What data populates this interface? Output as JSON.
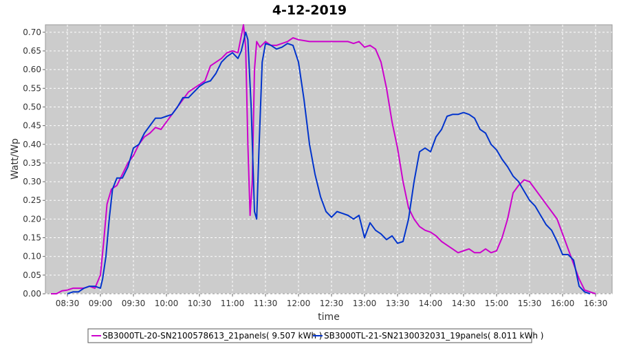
{
  "chart_data": {
    "type": "line",
    "title": "4-12-2019",
    "xlabel": "time",
    "ylabel": "Watt/Wp",
    "xlim": [
      "08:10",
      "16:45"
    ],
    "ylim": [
      0,
      0.72
    ],
    "x_ticks": [
      "08:30",
      "09:00",
      "09:30",
      "10:00",
      "10:30",
      "11:00",
      "11:30",
      "12:00",
      "12:30",
      "13:00",
      "13:30",
      "14:00",
      "14:30",
      "15:00",
      "15:30",
      "16:00",
      "16:30"
    ],
    "y_ticks": [
      0.0,
      0.05,
      0.1,
      0.15,
      0.2,
      0.25,
      0.3,
      0.35,
      0.4,
      0.45,
      0.5,
      0.55,
      0.6,
      0.65,
      0.7
    ],
    "grid": true,
    "legend_position": "bottom",
    "series": [
      {
        "name": "SB3000TL-20-SN2100578613_21panels( 9.507 kWh )",
        "color": "#cc00cc",
        "points": [
          [
            "08:15",
            0.0
          ],
          [
            "08:20",
            0.0
          ],
          [
            "08:25",
            0.008
          ],
          [
            "08:30",
            0.01
          ],
          [
            "08:35",
            0.015
          ],
          [
            "08:40",
            0.015
          ],
          [
            "08:45",
            0.015
          ],
          [
            "08:50",
            0.02
          ],
          [
            "08:55",
            0.015
          ],
          [
            "09:00",
            0.05
          ],
          [
            "09:03",
            0.14
          ],
          [
            "09:06",
            0.24
          ],
          [
            "09:10",
            0.28
          ],
          [
            "09:15",
            0.29
          ],
          [
            "09:20",
            0.32
          ],
          [
            "09:25",
            0.35
          ],
          [
            "09:30",
            0.37
          ],
          [
            "09:35",
            0.4
          ],
          [
            "09:40",
            0.42
          ],
          [
            "09:45",
            0.43
          ],
          [
            "09:50",
            0.445
          ],
          [
            "09:55",
            0.44
          ],
          [
            "10:00",
            0.46
          ],
          [
            "10:05",
            0.48
          ],
          [
            "10:10",
            0.5
          ],
          [
            "10:15",
            0.52
          ],
          [
            "10:20",
            0.54
          ],
          [
            "10:25",
            0.55
          ],
          [
            "10:30",
            0.56
          ],
          [
            "10:35",
            0.57
          ],
          [
            "10:40",
            0.61
          ],
          [
            "10:45",
            0.62
          ],
          [
            "10:50",
            0.63
          ],
          [
            "10:55",
            0.645
          ],
          [
            "11:00",
            0.65
          ],
          [
            "11:05",
            0.645
          ],
          [
            "11:08",
            0.69
          ],
          [
            "11:10",
            0.72
          ],
          [
            "11:12",
            0.66
          ],
          [
            "11:14",
            0.4
          ],
          [
            "11:16",
            0.21
          ],
          [
            "11:18",
            0.3
          ],
          [
            "11:20",
            0.6
          ],
          [
            "11:22",
            0.675
          ],
          [
            "11:25",
            0.66
          ],
          [
            "11:30",
            0.675
          ],
          [
            "11:35",
            0.665
          ],
          [
            "11:40",
            0.665
          ],
          [
            "11:45",
            0.67
          ],
          [
            "11:50",
            0.675
          ],
          [
            "11:55",
            0.685
          ],
          [
            "12:00",
            0.68
          ],
          [
            "12:10",
            0.675
          ],
          [
            "12:20",
            0.675
          ],
          [
            "12:30",
            0.675
          ],
          [
            "12:40",
            0.675
          ],
          [
            "12:45",
            0.675
          ],
          [
            "12:50",
            0.67
          ],
          [
            "12:55",
            0.675
          ],
          [
            "13:00",
            0.66
          ],
          [
            "13:05",
            0.665
          ],
          [
            "13:10",
            0.655
          ],
          [
            "13:15",
            0.62
          ],
          [
            "13:20",
            0.55
          ],
          [
            "13:25",
            0.46
          ],
          [
            "13:30",
            0.39
          ],
          [
            "13:35",
            0.3
          ],
          [
            "13:40",
            0.23
          ],
          [
            "13:45",
            0.2
          ],
          [
            "13:50",
            0.18
          ],
          [
            "13:55",
            0.17
          ],
          [
            "14:00",
            0.165
          ],
          [
            "14:05",
            0.155
          ],
          [
            "14:10",
            0.14
          ],
          [
            "14:15",
            0.13
          ],
          [
            "14:20",
            0.12
          ],
          [
            "14:25",
            0.11
          ],
          [
            "14:30",
            0.115
          ],
          [
            "14:35",
            0.12
          ],
          [
            "14:40",
            0.11
          ],
          [
            "14:45",
            0.11
          ],
          [
            "14:50",
            0.12
          ],
          [
            "14:55",
            0.11
          ],
          [
            "15:00",
            0.115
          ],
          [
            "15:05",
            0.15
          ],
          [
            "15:10",
            0.2
          ],
          [
            "15:15",
            0.27
          ],
          [
            "15:20",
            0.29
          ],
          [
            "15:25",
            0.305
          ],
          [
            "15:30",
            0.3
          ],
          [
            "15:35",
            0.28
          ],
          [
            "15:40",
            0.26
          ],
          [
            "15:45",
            0.24
          ],
          [
            "15:50",
            0.22
          ],
          [
            "15:55",
            0.2
          ],
          [
            "16:00",
            0.16
          ],
          [
            "16:05",
            0.12
          ],
          [
            "16:10",
            0.08
          ],
          [
            "16:15",
            0.04
          ],
          [
            "16:20",
            0.01
          ],
          [
            "16:25",
            0.005
          ],
          [
            "16:30",
            0.0
          ]
        ]
      },
      {
        "name": "SB3000TL-21-SN2130032031_19panels( 8.011 kWh )",
        "color": "#0033cc",
        "points": [
          [
            "08:30",
            0.0
          ],
          [
            "08:35",
            0.005
          ],
          [
            "08:40",
            0.005
          ],
          [
            "08:45",
            0.015
          ],
          [
            "08:50",
            0.02
          ],
          [
            "08:55",
            0.02
          ],
          [
            "09:00",
            0.015
          ],
          [
            "09:02",
            0.04
          ],
          [
            "09:05",
            0.1
          ],
          [
            "09:08",
            0.2
          ],
          [
            "09:11",
            0.28
          ],
          [
            "09:15",
            0.31
          ],
          [
            "09:20",
            0.31
          ],
          [
            "09:25",
            0.34
          ],
          [
            "09:30",
            0.39
          ],
          [
            "09:35",
            0.4
          ],
          [
            "09:40",
            0.43
          ],
          [
            "09:45",
            0.45
          ],
          [
            "09:50",
            0.47
          ],
          [
            "09:55",
            0.47
          ],
          [
            "10:00",
            0.475
          ],
          [
            "10:05",
            0.48
          ],
          [
            "10:10",
            0.5
          ],
          [
            "10:15",
            0.525
          ],
          [
            "10:20",
            0.525
          ],
          [
            "10:25",
            0.54
          ],
          [
            "10:30",
            0.555
          ],
          [
            "10:35",
            0.565
          ],
          [
            "10:40",
            0.57
          ],
          [
            "10:45",
            0.59
          ],
          [
            "10:50",
            0.62
          ],
          [
            "10:55",
            0.635
          ],
          [
            "11:00",
            0.645
          ],
          [
            "11:05",
            0.63
          ],
          [
            "11:08",
            0.65
          ],
          [
            "11:12",
            0.7
          ],
          [
            "11:14",
            0.68
          ],
          [
            "11:17",
            0.5
          ],
          [
            "11:20",
            0.22
          ],
          [
            "11:22",
            0.2
          ],
          [
            "11:24",
            0.38
          ],
          [
            "11:27",
            0.62
          ],
          [
            "11:30",
            0.67
          ],
          [
            "11:35",
            0.665
          ],
          [
            "11:40",
            0.655
          ],
          [
            "11:45",
            0.66
          ],
          [
            "11:50",
            0.67
          ],
          [
            "11:55",
            0.665
          ],
          [
            "12:00",
            0.62
          ],
          [
            "12:05",
            0.52
          ],
          [
            "12:10",
            0.4
          ],
          [
            "12:15",
            0.32
          ],
          [
            "12:20",
            0.26
          ],
          [
            "12:25",
            0.22
          ],
          [
            "12:30",
            0.205
          ],
          [
            "12:35",
            0.22
          ],
          [
            "12:40",
            0.215
          ],
          [
            "12:45",
            0.21
          ],
          [
            "12:50",
            0.2
          ],
          [
            "12:55",
            0.21
          ],
          [
            "13:00",
            0.15
          ],
          [
            "13:05",
            0.19
          ],
          [
            "13:10",
            0.17
          ],
          [
            "13:15",
            0.16
          ],
          [
            "13:20",
            0.145
          ],
          [
            "13:25",
            0.155
          ],
          [
            "13:30",
            0.135
          ],
          [
            "13:35",
            0.14
          ],
          [
            "13:40",
            0.2
          ],
          [
            "13:45",
            0.3
          ],
          [
            "13:50",
            0.38
          ],
          [
            "13:55",
            0.39
          ],
          [
            "14:00",
            0.38
          ],
          [
            "14:05",
            0.42
          ],
          [
            "14:10",
            0.44
          ],
          [
            "14:15",
            0.475
          ],
          [
            "14:20",
            0.48
          ],
          [
            "14:25",
            0.48
          ],
          [
            "14:30",
            0.485
          ],
          [
            "14:35",
            0.48
          ],
          [
            "14:40",
            0.47
          ],
          [
            "14:45",
            0.44
          ],
          [
            "14:50",
            0.43
          ],
          [
            "14:55",
            0.4
          ],
          [
            "15:00",
            0.385
          ],
          [
            "15:05",
            0.36
          ],
          [
            "15:10",
            0.34
          ],
          [
            "15:15",
            0.315
          ],
          [
            "15:20",
            0.3
          ],
          [
            "15:25",
            0.275
          ],
          [
            "15:30",
            0.25
          ],
          [
            "15:35",
            0.235
          ],
          [
            "15:40",
            0.21
          ],
          [
            "15:45",
            0.185
          ],
          [
            "15:50",
            0.17
          ],
          [
            "15:55",
            0.14
          ],
          [
            "16:00",
            0.105
          ],
          [
            "16:05",
            0.105
          ],
          [
            "16:10",
            0.09
          ],
          [
            "16:15",
            0.02
          ],
          [
            "16:20",
            0.005
          ],
          [
            "16:25",
            0.0
          ]
        ]
      }
    ]
  }
}
